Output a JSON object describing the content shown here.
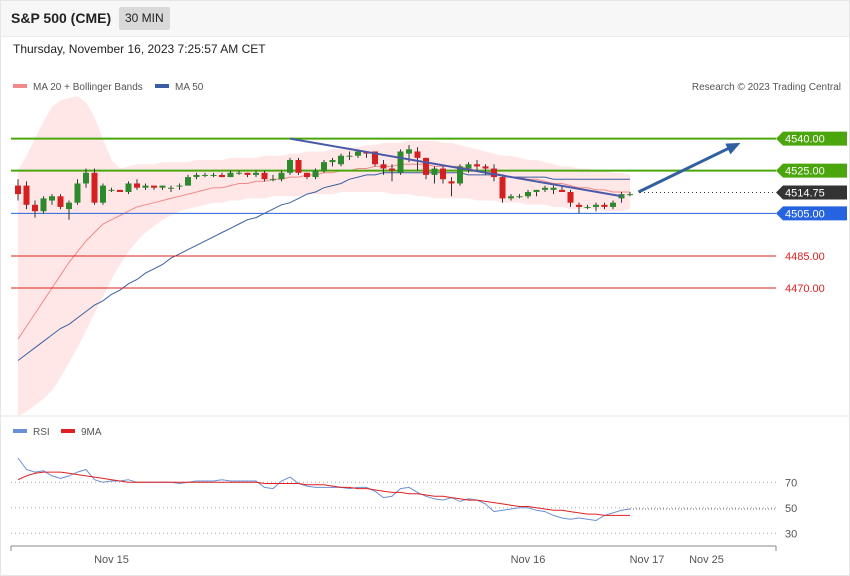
{
  "header": {
    "title": "S&P 500 (CME)",
    "interval": "30 MIN"
  },
  "datetime": "Thursday, November 16, 2023 7:25:57 AM CET",
  "copyright": "Research © 2023 Trading Central",
  "legend": [
    {
      "label": "MA 20 + Bollinger Bands",
      "color": "#f08a8a"
    },
    {
      "label": "MA 50",
      "color": "#3a5fa0"
    }
  ],
  "rsi_legend": [
    {
      "label": "RSI",
      "color": "#6a8fd8"
    },
    {
      "label": "9MA",
      "color": "#e02020"
    }
  ],
  "chart_data": [
    {
      "type": "candlestick",
      "title": "S&P 500 (CME)",
      "ylim": [
        4410,
        4560
      ],
      "levels": [
        {
          "label": "4540.00",
          "value": 4540.0,
          "style": "resistance",
          "color": "#4aa60c"
        },
        {
          "label": "4525.00",
          "value": 4525.0,
          "style": "resistance",
          "color": "#4aa60c"
        },
        {
          "label": "4514.75",
          "value": 4514.75,
          "style": "last",
          "color": "#333333"
        },
        {
          "label": "4505.00",
          "value": 4505.0,
          "style": "pivot",
          "color": "#2663e0"
        },
        {
          "label": "4485.00",
          "value": 4485.0,
          "style": "support",
          "color": "#dd2020"
        },
        {
          "label": "4470.00",
          "value": 4470.0,
          "style": "support",
          "color": "#dd2020"
        }
      ],
      "candles": [
        [
          4518,
          4521,
          4511,
          4514
        ],
        [
          4518,
          4520,
          4507,
          4509
        ],
        [
          4509,
          4511,
          4503,
          4506
        ],
        [
          4506,
          4513,
          4505,
          4512
        ],
        [
          4511,
          4514,
          4509,
          4513
        ],
        [
          4513,
          4514,
          4507,
          4508
        ],
        [
          4507,
          4511,
          4502,
          4510
        ],
        [
          4510,
          4521,
          4509,
          4519
        ],
        [
          4519,
          4526,
          4517,
          4524
        ],
        [
          4524,
          4526,
          4509,
          4510
        ],
        [
          4510,
          4519,
          4509,
          4518
        ],
        [
          4516,
          4517,
          4515,
          4516
        ],
        [
          4516,
          4516,
          4515,
          4515
        ],
        [
          4515,
          4520,
          4514,
          4519
        ],
        [
          4519,
          4521,
          4516,
          4517
        ],
        [
          4517,
          4519,
          4516,
          4518
        ],
        [
          4518,
          4518,
          4516,
          4517
        ],
        [
          4517,
          4518,
          4516,
          4518
        ],
        [
          4517,
          4518,
          4515,
          4517
        ],
        [
          4518,
          4519,
          4516,
          4518
        ],
        [
          4518,
          4523,
          4518,
          4522
        ],
        [
          4522,
          4524,
          4521,
          4523
        ],
        [
          4523,
          4524,
          4522,
          4523
        ],
        [
          4523,
          4524,
          4522,
          4523
        ],
        [
          4523,
          4524,
          4522,
          4522
        ],
        [
          4522,
          4525,
          4522,
          4524
        ],
        [
          4524,
          4525,
          4523,
          4524
        ],
        [
          4524,
          4524,
          4522,
          4523
        ],
        [
          4523,
          4525,
          4522,
          4524
        ],
        [
          4524,
          4525,
          4520,
          4521
        ],
        [
          4521,
          4523,
          4520,
          4521
        ],
        [
          4521,
          4525,
          4520,
          4524
        ],
        [
          4524,
          4531,
          4523,
          4530
        ],
        [
          4530,
          4531,
          4523,
          4524
        ],
        [
          4524,
          4524,
          4521,
          4522
        ],
        [
          4522,
          4526,
          4521,
          4525
        ],
        [
          4525,
          4530,
          4524,
          4529
        ],
        [
          4529,
          4531,
          4527,
          4530
        ],
        [
          4528,
          4533,
          4527,
          4532
        ],
        [
          4532,
          4534,
          4530,
          4532
        ],
        [
          4532,
          4535,
          4531,
          4534
        ],
        [
          4534,
          4534,
          4531,
          4533
        ],
        [
          4534,
          4534,
          4527,
          4528
        ],
        [
          4528,
          4530,
          4523,
          4526
        ],
        [
          4526,
          4528,
          4520,
          4525
        ],
        [
          4524,
          4535,
          4523,
          4534
        ],
        [
          4533,
          4537,
          4529,
          4535
        ],
        [
          4534,
          4536,
          4525,
          4531
        ],
        [
          4531,
          4531,
          4521,
          4523
        ],
        [
          4523,
          4527,
          4519,
          4526
        ],
        [
          4526,
          4527,
          4519,
          4521
        ],
        [
          4520,
          4522,
          4513,
          4519
        ],
        [
          4519,
          4528,
          4518,
          4527
        ],
        [
          4526,
          4529,
          4524,
          4528
        ],
        [
          4528,
          4530,
          4525,
          4527
        ],
        [
          4527,
          4528,
          4523,
          4526
        ],
        [
          4526,
          4528,
          4520,
          4522
        ],
        [
          4522,
          4523,
          4510,
          4512
        ],
        [
          4512,
          4514,
          4511,
          4513
        ],
        [
          4513,
          4514,
          4512,
          4513
        ],
        [
          4513,
          4516,
          4512,
          4515
        ],
        [
          4515,
          4516,
          4513,
          4516
        ],
        [
          4516,
          4518,
          4515,
          4517
        ],
        [
          4516,
          4518,
          4514,
          4517
        ],
        [
          4516,
          4518,
          4515,
          4515
        ],
        [
          4515,
          4516,
          4508,
          4510
        ],
        [
          4509,
          4510,
          4505,
          4508
        ],
        [
          4508,
          4509,
          4507,
          4508
        ],
        [
          4508,
          4510,
          4506,
          4509
        ],
        [
          4509,
          4510,
          4507,
          4508
        ],
        [
          4508,
          4511,
          4507,
          4510
        ],
        [
          4512,
          4515,
          4510,
          4514
        ],
        [
          4514,
          4515,
          4513,
          4514
        ]
      ],
      "ma20": [
        4446,
        4452,
        4458,
        4464,
        4470,
        4476,
        4482,
        4487,
        4492,
        4496,
        4500,
        4502,
        4504,
        4506,
        4508,
        4509,
        4510,
        4511,
        4512,
        4513,
        4514,
        4515,
        4516,
        4517,
        4517,
        4518,
        4519,
        4519,
        4520,
        4520,
        4521,
        4521,
        4522,
        4522,
        4523,
        4523,
        4524,
        4524,
        4525,
        4525,
        4526,
        4526,
        4527,
        4527,
        4527,
        4528,
        4528,
        4528,
        4528,
        4527,
        4527,
        4527,
        4527,
        4526,
        4525,
        4525,
        4524,
        4523,
        4522,
        4522,
        4521,
        4521,
        4520,
        4519,
        4519,
        4518,
        4517,
        4517,
        4516,
        4516,
        4515,
        4515,
        4515
      ],
      "bb_upper": [
        4525,
        4532,
        4540,
        4548,
        4555,
        4558,
        4559,
        4560,
        4557,
        4550,
        4540,
        4530,
        4526,
        4527,
        4528,
        4528,
        4528,
        4529,
        4529,
        4529,
        4529,
        4530,
        4530,
        4530,
        4530,
        4531,
        4531,
        4531,
        4531,
        4532,
        4532,
        4532,
        4533,
        4533,
        4534,
        4534,
        4534,
        4535,
        4535,
        4536,
        4536,
        4537,
        4537,
        4538,
        4538,
        4538,
        4539,
        4539,
        4539,
        4539,
        4538,
        4538,
        4537,
        4536,
        4535,
        4534,
        4533,
        4532,
        4532,
        4531,
        4530,
        4530,
        4529,
        4528,
        4527,
        4527,
        4526,
        4526,
        4525,
        4525,
        4524,
        4524,
        4523
      ],
      "bb_lower": [
        4410,
        4412,
        4415,
        4418,
        4422,
        4428,
        4435,
        4442,
        4450,
        4458,
        4466,
        4474,
        4481,
        4487,
        4492,
        4496,
        4499,
        4502,
        4504,
        4506,
        4507,
        4508,
        4509,
        4510,
        4510,
        4511,
        4511,
        4512,
        4512,
        4512,
        4513,
        4513,
        4513,
        4513,
        4514,
        4514,
        4514,
        4514,
        4515,
        4515,
        4515,
        4515,
        4515,
        4515,
        4514,
        4514,
        4514,
        4513,
        4513,
        4512,
        4512,
        4512,
        4512,
        4512,
        4511,
        4511,
        4511,
        4510,
        4510,
        4510,
        4509,
        4509,
        4509,
        4508,
        4508,
        4507,
        4507,
        4507,
        4507,
        4506,
        4506,
        4506,
        4507
      ],
      "ma50": [
        4436,
        4439,
        4442,
        4445,
        4448,
        4451,
        4453,
        4456,
        4459,
        4462,
        4464,
        4467,
        4469,
        4472,
        4474,
        4477,
        4479,
        4481,
        4484,
        4486,
        4488,
        4490,
        4492,
        4494,
        4496,
        4498,
        4500,
        4502,
        4503,
        4505,
        4507,
        4509,
        4510,
        4512,
        4514,
        4515,
        4517,
        4518,
        4519,
        4521,
        4522,
        4523,
        4523,
        4524,
        4524,
        4524,
        4524,
        4524,
        4524,
        4524,
        4524,
        4524,
        4524,
        4523,
        4523,
        4523,
        4523,
        4523,
        4522,
        4522,
        4522,
        4522,
        4522,
        4521,
        4521,
        4521,
        4521,
        4521,
        4521,
        4521,
        4521,
        4521,
        4521
      ],
      "trendline": {
        "from": [
          32,
          4540
        ],
        "to": [
          71,
          4513
        ]
      },
      "projection": {
        "from": [
          73,
          4515
        ],
        "to": [
          85,
          4538
        ]
      },
      "x_labels": [
        {
          "label": "Nov 15",
          "index": 11
        },
        {
          "label": "Nov 16",
          "index": 60
        },
        {
          "label": "Nov 17",
          "index": 74
        },
        {
          "label": "Nov 25",
          "index": 81
        }
      ]
    },
    {
      "type": "line",
      "title": "RSI",
      "ylim": [
        20,
        100
      ],
      "y_ticks": [
        70,
        50,
        30
      ],
      "series": [
        {
          "name": "RSI",
          "color": "#6a8fd8",
          "values": [
            89,
            80,
            78,
            79,
            75,
            73,
            75,
            78,
            80,
            72,
            70,
            71,
            71,
            72,
            70,
            70,
            70,
            70,
            70,
            69,
            70,
            71,
            71,
            71,
            72,
            71,
            71,
            71,
            71,
            66,
            65,
            71,
            74,
            69,
            67,
            66,
            66,
            66,
            66,
            65,
            66,
            66,
            63,
            58,
            59,
            65,
            66,
            62,
            59,
            57,
            56,
            58,
            55,
            57,
            56,
            53,
            47,
            48,
            49,
            50,
            50,
            48,
            47,
            44,
            42,
            41,
            42,
            41,
            40,
            44,
            46,
            48,
            49
          ]
        },
        {
          "name": "9MA",
          "color": "#e02020",
          "values": [
            72,
            75,
            77,
            78,
            78,
            78,
            77,
            76,
            75,
            74,
            73,
            72,
            71,
            70,
            70,
            70,
            70,
            70,
            70,
            70,
            70,
            70,
            70,
            70,
            70,
            70,
            70,
            70,
            70,
            69,
            69,
            69,
            69,
            69,
            68,
            68,
            68,
            67,
            66,
            66,
            65,
            65,
            64,
            63,
            62,
            62,
            61,
            61,
            60,
            59,
            59,
            58,
            57,
            56,
            56,
            55,
            54,
            53,
            52,
            51,
            51,
            50,
            49,
            48,
            48,
            47,
            46,
            45,
            45,
            44,
            44,
            44,
            44
          ]
        }
      ]
    }
  ]
}
